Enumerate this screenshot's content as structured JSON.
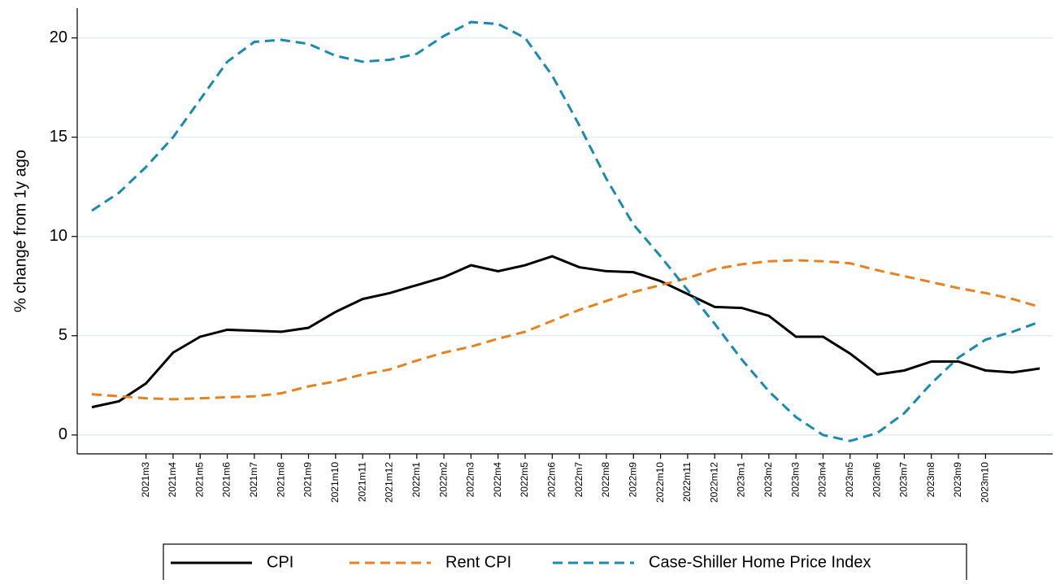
{
  "chart_data": {
    "type": "line",
    "y_label": "% change from 1y ago",
    "categories": [
      null,
      null,
      "2021m3",
      "2021m4",
      "2021m5",
      "2021m6",
      "2021m7",
      "2021m8",
      "2021m9",
      "2021m10",
      "2021m11",
      "2021m12",
      "2022m1",
      "2022m2",
      "2022m3",
      "2022m4",
      "2022m5",
      "2022m6",
      "2022m7",
      "2022m8",
      "2022m9",
      "2022m10",
      "2022m11",
      "2022m12",
      "2023m1",
      "2023m2",
      "2023m3",
      "2023m4",
      "2023m5",
      "2023m6",
      "2023m7",
      "2023m8",
      "2023m9",
      "2023m10",
      null,
      null
    ],
    "series": [
      {
        "name": "CPI",
        "color": "#000000",
        "line_style": "solid",
        "values": [
          1.4,
          1.7,
          2.6,
          4.15,
          4.95,
          5.3,
          5.25,
          5.2,
          5.4,
          6.2,
          6.85,
          7.15,
          7.55,
          7.95,
          8.55,
          8.25,
          8.55,
          9.0,
          8.45,
          8.25,
          8.2,
          7.75,
          7.1,
          6.45,
          6.4,
          6.0,
          4.95,
          4.95,
          4.1,
          3.05,
          3.25,
          3.7,
          3.7,
          3.25,
          3.15,
          3.35
        ]
      },
      {
        "name": "Rent CPI",
        "color": "#e8821e",
        "line_style": "dashed",
        "values": [
          2.05,
          1.95,
          1.85,
          1.8,
          1.85,
          1.9,
          1.95,
          2.1,
          2.45,
          2.7,
          3.05,
          3.3,
          3.75,
          4.15,
          4.45,
          4.85,
          5.2,
          5.75,
          6.3,
          6.75,
          7.2,
          7.55,
          7.9,
          8.35,
          8.6,
          8.75,
          8.8,
          8.75,
          8.65,
          8.3,
          8.0,
          7.7,
          7.4,
          7.15,
          6.85,
          6.45
        ]
      },
      {
        "name": "Case-Shiller Home Price Index",
        "color": "#1a8bb0",
        "line_style": "dashed",
        "values": [
          11.3,
          12.2,
          13.5,
          15.0,
          16.9,
          18.8,
          19.8,
          19.9,
          19.7,
          19.1,
          18.8,
          18.9,
          19.2,
          20.1,
          20.8,
          20.7,
          20.0,
          18.1,
          15.6,
          12.9,
          10.6,
          9.0,
          7.3,
          5.6,
          3.8,
          2.2,
          0.9,
          0.0,
          -0.3,
          0.1,
          1.1,
          2.6,
          3.9,
          4.8,
          5.2,
          5.7
        ]
      }
    ],
    "ylim": [
      -0.95,
      21.5
    ],
    "yticks": [
      0,
      5,
      10,
      15,
      20
    ],
    "grid": true,
    "legend": "bottom"
  }
}
